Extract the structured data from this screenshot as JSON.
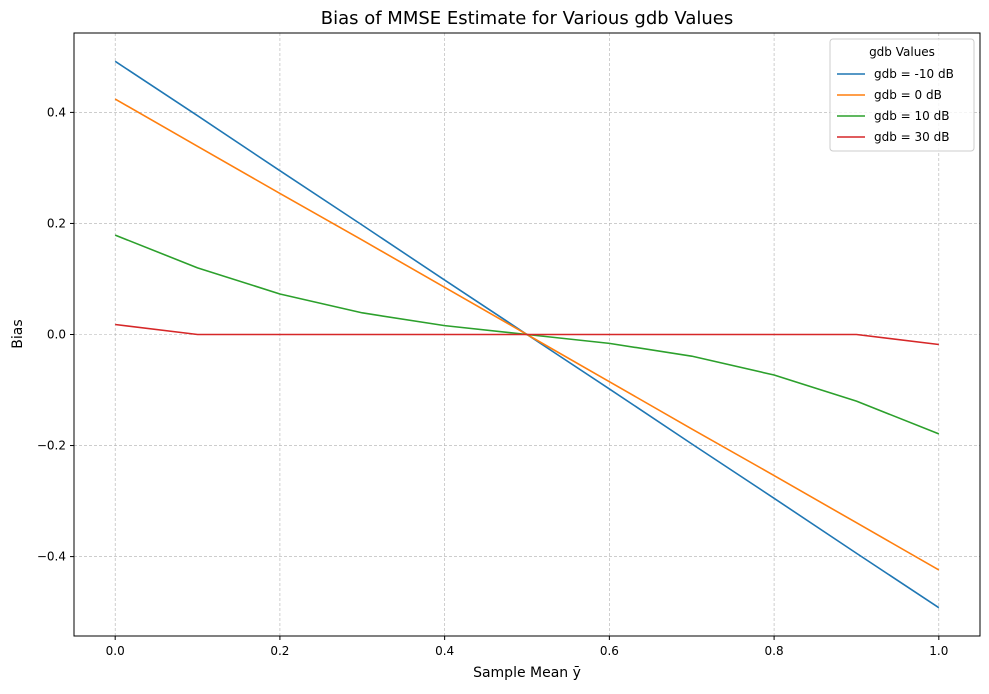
{
  "chart_data": {
    "type": "line",
    "title": "Bias of MMSE Estimate for Various gdb Values",
    "xlabel": "Sample Mean ȳ",
    "ylabel": "Bias",
    "xlim": [
      -0.05,
      1.05
    ],
    "ylim": [
      -0.543,
      0.543
    ],
    "x_ticks": [
      0.0,
      0.2,
      0.4,
      0.6,
      0.8,
      1.0
    ],
    "x_tick_labels": [
      "0.0",
      "0.2",
      "0.4",
      "0.6",
      "0.8",
      "1.0"
    ],
    "y_ticks": [
      -0.4,
      -0.2,
      0.0,
      0.2,
      0.4
    ],
    "y_tick_labels": [
      "−0.4",
      "−0.2",
      "0.0",
      "0.2",
      "0.4"
    ],
    "grid": true,
    "legend_title": "gdb Values",
    "legend_position": "top-right",
    "x": [
      0.0,
      0.1,
      0.2,
      0.3,
      0.4,
      0.5,
      0.6,
      0.7,
      0.8,
      0.9,
      1.0
    ],
    "series": [
      {
        "name": "gdb = -10 dB",
        "color": "#1f77b4",
        "values": [
          0.492,
          0.394,
          0.295,
          0.197,
          0.098,
          0.0,
          -0.098,
          -0.197,
          -0.295,
          -0.394,
          -0.492
        ]
      },
      {
        "name": "gdb = 0 dB",
        "color": "#ff7f0e",
        "values": [
          0.424,
          0.339,
          0.254,
          0.17,
          0.085,
          0.0,
          -0.085,
          -0.17,
          -0.254,
          -0.339,
          -0.424
        ]
      },
      {
        "name": "gdb = 10 dB",
        "color": "#2ca02c",
        "values": [
          0.179,
          0.12,
          0.073,
          0.039,
          0.016,
          0.0,
          -0.016,
          -0.039,
          -0.073,
          -0.12,
          -0.179
        ]
      },
      {
        "name": "gdb = 30 dB",
        "color": "#d62728",
        "values": [
          0.018,
          0.0,
          0.0,
          0.0,
          0.0,
          0.0,
          0.0,
          0.0,
          0.0,
          0.0,
          -0.018
        ]
      }
    ]
  }
}
